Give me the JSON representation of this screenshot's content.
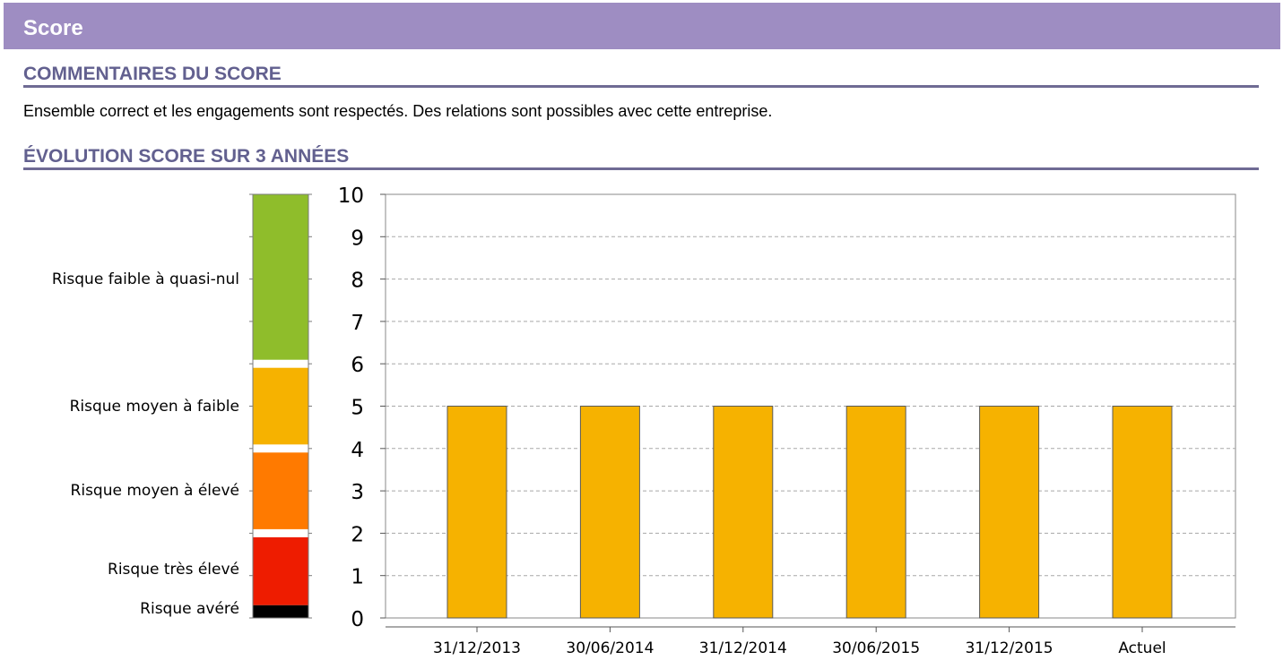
{
  "header": {
    "title": "Score"
  },
  "sections": {
    "comments_title": "COMMENTAIRES DU SCORE",
    "comment_text": "Ensemble correct et les engagements sont respectés. Des relations sont possibles avec cette entreprise.",
    "evolution_title": "ÉVOLUTION SCORE SUR 3 ANNÉES"
  },
  "risk_scale": [
    {
      "label": "Risque faible à quasi-nul",
      "from": 6,
      "to": 10,
      "color": "#8fbd2b"
    },
    {
      "label": "Risque moyen à faible",
      "from": 4,
      "to": 6,
      "color": "#f6b200"
    },
    {
      "label": "Risque moyen à élevé",
      "from": 2,
      "to": 4,
      "color": "#ff7a00"
    },
    {
      "label": "Risque très élevé",
      "from": 0.3,
      "to": 2,
      "color": "#ee1c00"
    },
    {
      "label": "Risque avéré",
      "from": 0,
      "to": 0.3,
      "color": "#000000"
    }
  ],
  "chart_data": {
    "type": "bar",
    "categories": [
      "31/12/2013",
      "30/06/2014",
      "31/12/2014",
      "30/06/2015",
      "31/12/2015",
      "Actuel"
    ],
    "values": [
      5,
      5,
      5,
      5,
      5,
      5
    ],
    "ylim": [
      0,
      10
    ],
    "yticks": [
      0,
      1,
      2,
      3,
      4,
      5,
      6,
      7,
      8,
      9,
      10
    ],
    "grid": true,
    "bar_color": "#f6b200"
  }
}
